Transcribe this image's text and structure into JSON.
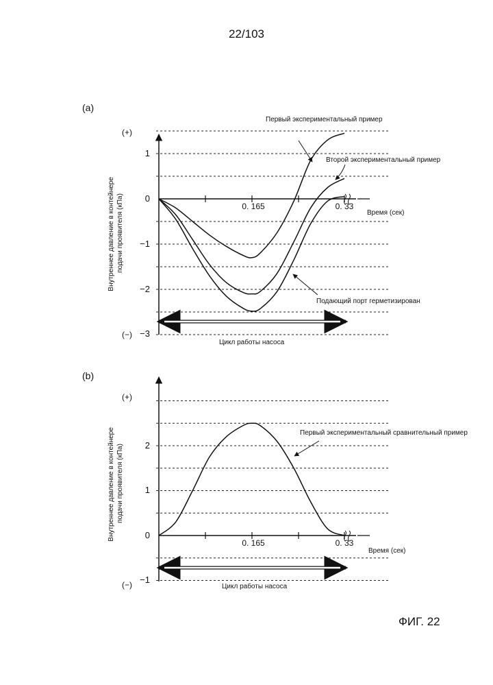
{
  "page_number": "22/103",
  "figure_label": "ФИГ. 22",
  "chart_data": [
    {
      "panel_label": "(a)",
      "type": "line",
      "xlabel": "Время (сек)",
      "ylabel": "Внутреннее давление в контейнере подачи проявителя (кПа)",
      "ylabel_lines": [
        "Внутреннее давление в контейнере",
        "подачи проявителя (кПа)"
      ],
      "x_ticks": [
        "0. 165",
        "0. 33"
      ],
      "y_ticks": [
        "1",
        "0",
        "−1",
        "−2",
        "−3"
      ],
      "y_sign_top": "(+)",
      "y_sign_bottom": "(−)",
      "xlim": [
        0,
        0.33
      ],
      "ylim": [
        -3,
        1.5
      ],
      "gridlines_dashed": true,
      "cycle_label": "Цикл работы насоса",
      "series": [
        {
          "name": "Первый экспериментальный пример",
          "x": [
            0,
            0.03,
            0.06,
            0.09,
            0.12,
            0.15,
            0.165,
            0.18,
            0.21,
            0.24,
            0.27,
            0.3,
            0.33
          ],
          "y": [
            0,
            -0.2,
            -0.5,
            -0.8,
            -1.05,
            -1.25,
            -1.3,
            -1.2,
            -0.75,
            -0.05,
            0.85,
            1.3,
            1.45
          ]
        },
        {
          "name": "Второй экспериментальный пример",
          "x": [
            0,
            0.03,
            0.06,
            0.09,
            0.12,
            0.15,
            0.165,
            0.18,
            0.21,
            0.24,
            0.27,
            0.3,
            0.33
          ],
          "y": [
            0,
            -0.35,
            -0.9,
            -1.45,
            -1.85,
            -2.07,
            -2.1,
            -2.05,
            -1.65,
            -0.95,
            -0.2,
            0.25,
            0.45
          ]
        },
        {
          "name": "Подающий порт герметизирован",
          "x": [
            0,
            0.03,
            0.06,
            0.09,
            0.12,
            0.15,
            0.165,
            0.18,
            0.21,
            0.24,
            0.27,
            0.3,
            0.33
          ],
          "y": [
            0,
            -0.45,
            -1.1,
            -1.7,
            -2.15,
            -2.42,
            -2.48,
            -2.43,
            -2.05,
            -1.35,
            -0.55,
            -0.05,
            0.05
          ]
        }
      ]
    },
    {
      "panel_label": "(b)",
      "type": "line",
      "xlabel": "Время (сек)",
      "ylabel": "Внутреннее давление в контейнере подачи проявителя (кПа)",
      "ylabel_lines": [
        "Внутреннее давление в контейнере",
        "подачи проявителя (кПа)"
      ],
      "x_ticks": [
        "0. 165",
        "0. 33"
      ],
      "y_ticks": [
        "2",
        "1",
        "0",
        "−1"
      ],
      "y_sign_top": "(+)",
      "y_sign_bottom": "(−)",
      "xlim": [
        0,
        0.33
      ],
      "ylim": [
        -1,
        3
      ],
      "gridlines_dashed": true,
      "cycle_label": "Цикл работы насоса",
      "series": [
        {
          "name": "Первый экспериментальный сравнительный пример",
          "x": [
            0,
            0.03,
            0.06,
            0.09,
            0.12,
            0.15,
            0.165,
            0.18,
            0.21,
            0.24,
            0.27,
            0.3,
            0.33
          ],
          "y": [
            0,
            0.3,
            1.0,
            1.75,
            2.2,
            2.45,
            2.5,
            2.45,
            2.1,
            1.5,
            0.75,
            0.15,
            0
          ]
        }
      ]
    }
  ]
}
